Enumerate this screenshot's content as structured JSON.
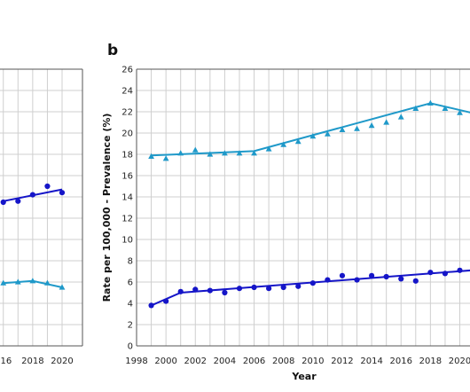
{
  "chart_data": [
    {
      "panel": "a",
      "type": "scatter",
      "title": "",
      "xlabel": "",
      "ylabel": "",
      "grid": true,
      "xlim": [
        1998,
        2020.8
      ],
      "ylim": [
        0,
        26
      ],
      "visible_x_ticks": [
        "016",
        "2018",
        "2020"
      ],
      "series": [
        {
          "color": "#1f99c9",
          "marker": "triangle",
          "x": [
            2016,
            2017,
            2018,
            2019,
            2020
          ],
          "values": [
            5.9,
            6.0,
            6.1,
            5.9,
            5.5
          ],
          "trend": {
            "x": [
              2016,
              2018,
              2020
            ],
            "y": [
              5.9,
              6.1,
              5.5
            ]
          }
        },
        {
          "color": "#1515c8",
          "marker": "circle",
          "x": [
            2016,
            2017,
            2018,
            2019,
            2020
          ],
          "values": [
            13.5,
            13.6,
            14.2,
            15.0,
            14.4
          ],
          "trend": {
            "x": [
              2016,
              2020
            ],
            "y": [
              13.6,
              14.7
            ]
          }
        }
      ]
    },
    {
      "panel": "b",
      "type": "scatter",
      "title": "",
      "xlabel": "Year",
      "ylabel": "Rate per 100,000 - Prevalence (%)",
      "grid": true,
      "xlim": [
        1998,
        2020.8
      ],
      "ylim": [
        0,
        26
      ],
      "x_ticks": [
        1998,
        2000,
        2002,
        2004,
        2006,
        2008,
        2010,
        2012,
        2014,
        2016,
        2018,
        2020
      ],
      "y_ticks": [
        0,
        2,
        4,
        6,
        8,
        10,
        12,
        14,
        16,
        18,
        20,
        22,
        24,
        26
      ],
      "series": [
        {
          "color": "#1f99c9",
          "marker": "triangle",
          "x": [
            1999,
            2000,
            2001,
            2002,
            2003,
            2004,
            2005,
            2006,
            2007,
            2008,
            2009,
            2010,
            2011,
            2012,
            2013,
            2014,
            2015,
            2016,
            2017,
            2018,
            2019,
            2020
          ],
          "values": [
            17.8,
            17.6,
            18.1,
            18.4,
            18.0,
            18.1,
            18.1,
            18.1,
            18.5,
            18.9,
            19.2,
            19.7,
            19.9,
            20.3,
            20.4,
            20.7,
            21.0,
            21.5,
            22.3,
            22.8,
            22.3,
            21.9
          ],
          "trend": {
            "x": [
              1999,
              2006,
              2018,
              2020.8
            ],
            "y": [
              17.9,
              18.3,
              22.8,
              21.9
            ]
          }
        },
        {
          "color": "#1515c8",
          "marker": "circle",
          "x": [
            1999,
            2000,
            2001,
            2002,
            2003,
            2004,
            2005,
            2006,
            2007,
            2008,
            2009,
            2010,
            2011,
            2012,
            2013,
            2014,
            2015,
            2016,
            2017,
            2018,
            2019,
            2020
          ],
          "values": [
            3.8,
            4.2,
            5.1,
            5.3,
            5.2,
            5.0,
            5.4,
            5.5,
            5.4,
            5.5,
            5.6,
            5.9,
            6.2,
            6.6,
            6.2,
            6.6,
            6.5,
            6.3,
            6.1,
            6.9,
            6.8,
            7.1
          ],
          "trend": {
            "x": [
              1999,
              2001,
              2020.8
            ],
            "y": [
              3.8,
              5.0,
              7.1
            ]
          }
        }
      ]
    }
  ],
  "labels": {
    "panel_b": "b",
    "x_axis": "Year",
    "y_axis": "Rate per 100,000 - Prevalence (%)"
  }
}
